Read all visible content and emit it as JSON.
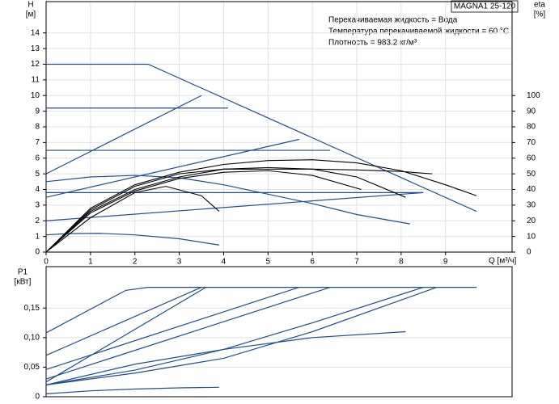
{
  "chart_data": [
    {
      "type": "line",
      "title": "MAGNA1 25-120",
      "annotations": [
        "Перекачиваемая жидкость = Вода",
        "Температура перекачиваемой жидкости = 60 °C",
        "Плотность = 983.2 кг/м³"
      ],
      "x_label": "Q [м³/ч]",
      "y_label": "H",
      "y_unit": "[м]",
      "y2_label": "eta",
      "y2_unit": "[%]",
      "xlim": [
        0,
        10.5
      ],
      "xticks": [
        0,
        1,
        2,
        3,
        4,
        5,
        6,
        7,
        8,
        9
      ],
      "ylim": [
        0,
        16
      ],
      "yticks": [
        0,
        1,
        2,
        3,
        4,
        5,
        6,
        7,
        8,
        9,
        10,
        11,
        12,
        13,
        14
      ],
      "y2lim": [
        0,
        160
      ],
      "y2ticks": [
        0,
        10,
        20,
        30,
        40,
        50,
        60,
        70,
        80,
        90,
        100
      ],
      "grid": true,
      "series": [
        {
          "color": "#1f4e8c",
          "x": [
            0,
            2.3,
            9.7
          ],
          "values": [
            12,
            12,
            2.6
          ]
        },
        {
          "color": "#1f4e8c",
          "x": [
            0,
            4.1
          ],
          "values": [
            9.2,
            9.2
          ]
        },
        {
          "color": "#1f4e8c",
          "x": [
            0,
            6.4
          ],
          "values": [
            6.5,
            6.5
          ]
        },
        {
          "color": "#1f4e8c",
          "x": [
            0,
            8.5
          ],
          "values": [
            3.8,
            3.8
          ]
        },
        {
          "color": "#1f4e8c",
          "x": [
            0,
            3.5
          ],
          "values": [
            5,
            10
          ]
        },
        {
          "color": "#1f4e8c",
          "x": [
            0,
            5.7
          ],
          "values": [
            3.5,
            7.2
          ]
        },
        {
          "color": "#1f4e8c",
          "x": [
            0,
            8.5
          ],
          "values": [
            2,
            3.8
          ]
        },
        {
          "color": "#1f4e8c",
          "x": [
            0,
            1,
            2,
            3,
            4,
            5,
            6,
            7,
            8.2
          ],
          "values": [
            4.5,
            4.8,
            4.9,
            4.75,
            4.3,
            3.7,
            3.1,
            2.4,
            1.8
          ]
        },
        {
          "color": "#1f4e8c",
          "x": [
            0,
            0.5,
            1.2,
            2,
            3,
            3.9
          ],
          "values": [
            1.1,
            1.18,
            1.2,
            1.1,
            0.85,
            0.45
          ]
        },
        {
          "color": "#000000",
          "x": [
            0,
            1,
            2,
            3,
            4,
            5,
            6,
            7,
            8,
            9,
            9.7
          ],
          "values": [
            0,
            2.8,
            4.3,
            5.1,
            5.6,
            5.85,
            5.9,
            5.7,
            5.2,
            4.3,
            3.6
          ]
        },
        {
          "color": "#000000",
          "x": [
            0,
            1,
            2,
            3,
            4,
            5,
            6,
            7,
            8.1
          ],
          "values": [
            0,
            2.6,
            4.0,
            4.8,
            5.3,
            5.4,
            5.3,
            4.8,
            3.5
          ]
        },
        {
          "color": "#000000",
          "x": [
            0,
            1,
            2,
            2.7,
            3.5,
            3.9
          ],
          "values": [
            0,
            2.2,
            3.8,
            4.2,
            3.6,
            2.6
          ]
        },
        {
          "color": "#000000",
          "x": [
            0,
            1,
            2,
            3,
            4,
            5,
            6,
            7.1
          ],
          "values": [
            0,
            2.5,
            3.9,
            4.7,
            5.1,
            5.2,
            4.9,
            4.0
          ]
        },
        {
          "color": "#000000",
          "x": [
            0,
            1,
            2,
            3,
            4,
            5,
            6,
            7,
            8,
            8.7
          ],
          "values": [
            0,
            2.7,
            4.2,
            5.0,
            5.3,
            5.3,
            5.3,
            5.25,
            5.15,
            5.0
          ]
        }
      ]
    },
    {
      "type": "line",
      "y_label": "P1",
      "y_unit": "[кВт]",
      "xlim": [
        0,
        10.5
      ],
      "ylim": [
        0,
        0.22
      ],
      "yticks": [
        0,
        {
          "value": 0.05,
          "label": "0,05"
        },
        {
          "value": 0.1,
          "label": "0,10"
        },
        {
          "value": 0.15,
          "label": "0,15"
        }
      ],
      "grid": true,
      "series": [
        {
          "color": "#1f4e8c",
          "x": [
            0,
            1.8,
            2.3,
            9.7
          ],
          "values": [
            0.108,
            0.18,
            0.185,
            0.185
          ]
        },
        {
          "color": "#1f4e8c",
          "x": [
            0,
            3.5
          ],
          "values": [
            0.07,
            0.185
          ]
        },
        {
          "color": "#1f4e8c",
          "x": [
            0,
            5.7
          ],
          "values": [
            0.046,
            0.185
          ]
        },
        {
          "color": "#1f4e8c",
          "x": [
            0,
            3.6
          ],
          "values": [
            0.025,
            0.185
          ]
        },
        {
          "color": "#1f4e8c",
          "x": [
            0,
            6.4
          ],
          "values": [
            0.03,
            0.185
          ]
        },
        {
          "color": "#1f4e8c",
          "x": [
            0,
            2,
            4,
            6,
            8.5
          ],
          "values": [
            0.02,
            0.045,
            0.08,
            0.125,
            0.185
          ]
        },
        {
          "color": "#1f4e8c",
          "x": [
            0,
            2,
            4,
            6,
            8.8
          ],
          "values": [
            0.02,
            0.04,
            0.065,
            0.11,
            0.185
          ]
        },
        {
          "color": "#1f4e8c",
          "x": [
            0,
            2,
            4,
            6,
            8.1
          ],
          "values": [
            0.02,
            0.055,
            0.08,
            0.1,
            0.11
          ]
        },
        {
          "color": "#1f4e8c",
          "x": [
            0,
            1,
            2,
            3,
            3.9
          ],
          "values": [
            0.005,
            0.01,
            0.013,
            0.015,
            0.016
          ]
        }
      ]
    }
  ]
}
